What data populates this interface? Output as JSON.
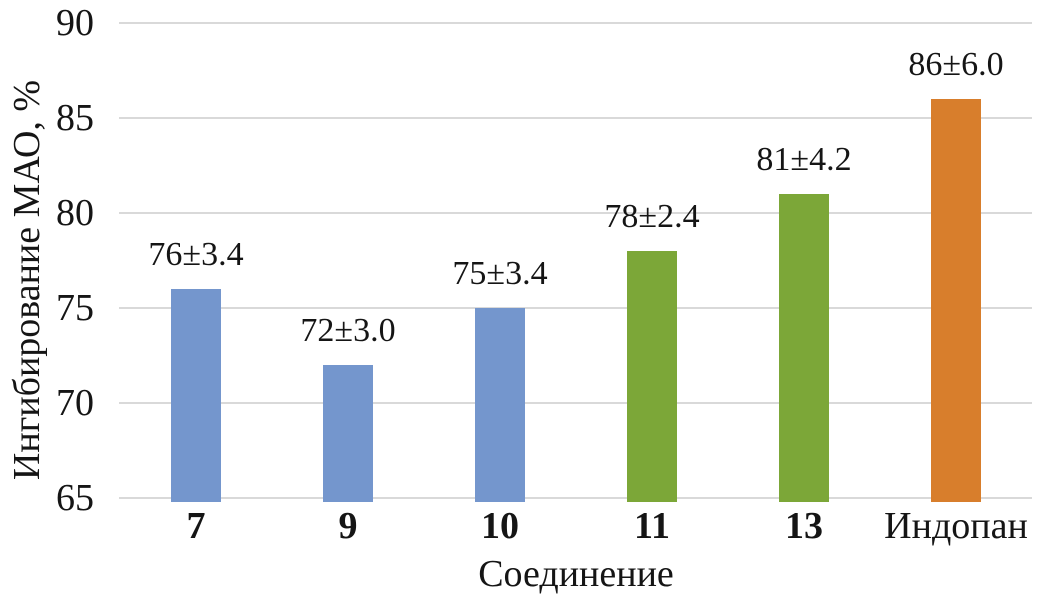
{
  "chart_data": {
    "type": "bar",
    "title": "",
    "xlabel": "Соединение",
    "ylabel": "Ингибирование МАО, %",
    "categories": [
      "7",
      "9",
      "10",
      "11",
      "13",
      "Индопан"
    ],
    "values": [
      76,
      72,
      75,
      78,
      81,
      86
    ],
    "errors": [
      3.4,
      3.0,
      3.4,
      2.4,
      4.2,
      6.0
    ],
    "bar_labels": [
      "76±3.4",
      "72±3.0",
      "75±3.4",
      "78±2.4",
      "81±4.2",
      "86±6.0"
    ],
    "bar_colors": [
      "#7496CD",
      "#7496CD",
      "#7496CD",
      "#7CA738",
      "#7CA738",
      "#D87E2C"
    ],
    "category_bold": [
      true,
      true,
      true,
      true,
      true,
      false
    ],
    "ylim": [
      65,
      90
    ],
    "yticks": [
      65,
      70,
      75,
      80,
      85,
      90
    ],
    "grid": "horizontal-only",
    "legend": "none",
    "gridline_color": "#D9D9D9",
    "background": "#FFFFFF",
    "text_color": "#151515"
  }
}
